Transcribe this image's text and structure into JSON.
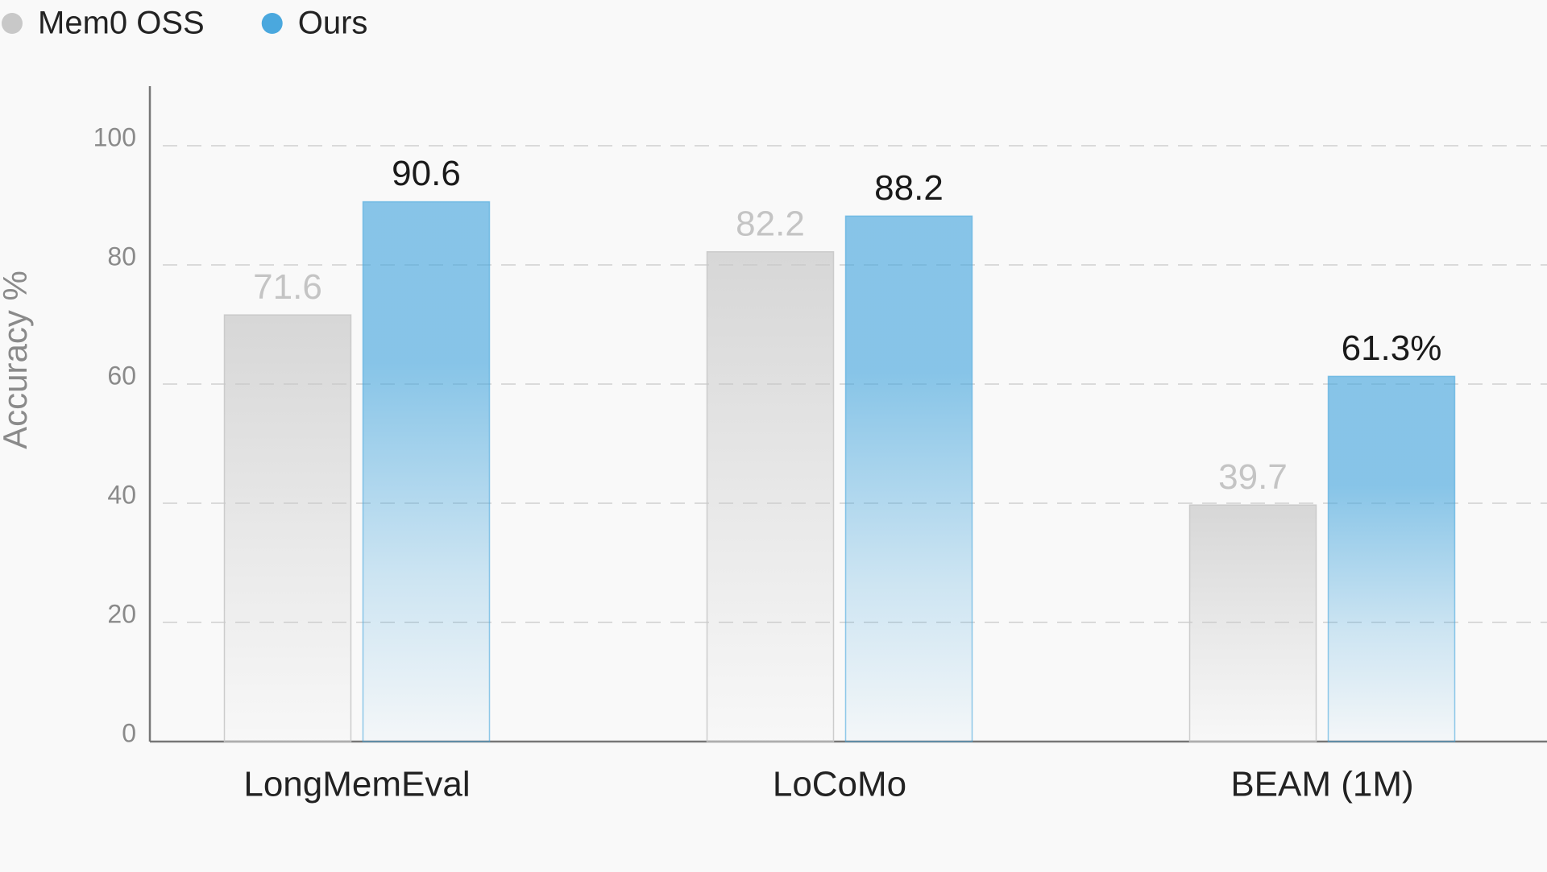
{
  "chart_data": {
    "type": "bar",
    "y_label": "Accuracy %",
    "categories": [
      "LongMemEval",
      "LoCoMo",
      "BEAM (1M)"
    ],
    "series": [
      {
        "name": "Mem0 OSS",
        "color": "#c8c8c8",
        "values": [
          71.6,
          82.2,
          39.7
        ]
      },
      {
        "name": "Ours",
        "color": "#4aa8de",
        "values": [
          90.6,
          88.2,
          61.3
        ],
        "value_labels": [
          "90.6",
          "88.2",
          "61.3%"
        ]
      }
    ],
    "ylim": [
      0,
      110
    ],
    "yticks": [
      0,
      20,
      40,
      60,
      80,
      100
    ],
    "grid": true,
    "legend": "top-left"
  }
}
